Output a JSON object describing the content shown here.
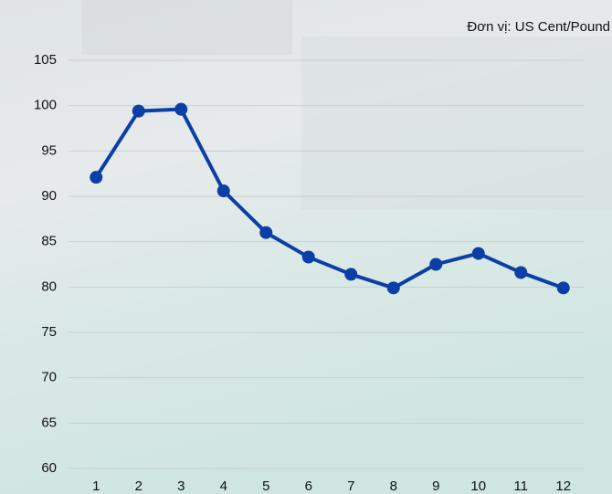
{
  "chart_data": {
    "type": "line",
    "subtitle": "Đơn vị: US Cent/Pound",
    "categories": [
      "1",
      "2",
      "3",
      "4",
      "5",
      "6",
      "7",
      "8",
      "9",
      "10",
      "11",
      "12"
    ],
    "series": [
      {
        "color": "#0b3fa6",
        "values": [
          92.1,
          99.4,
          99.6,
          90.6,
          86.0,
          83.3,
          81.4,
          79.9,
          82.5,
          83.7,
          81.6,
          79.9
        ]
      }
    ],
    "ylim": [
      60,
      105
    ],
    "yticks": [
      60,
      65,
      70,
      75,
      80,
      85,
      90,
      95,
      100,
      105
    ],
    "grid": true
  }
}
